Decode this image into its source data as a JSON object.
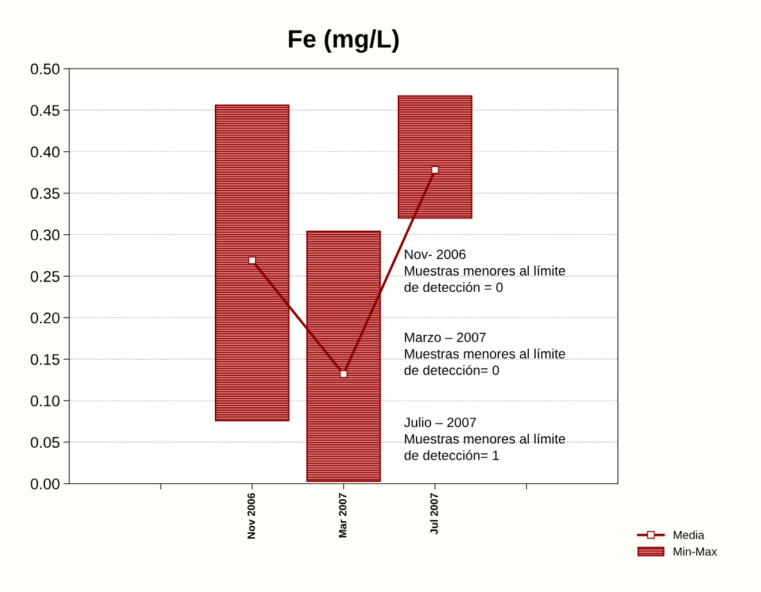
{
  "chart_data": {
    "type": "bar",
    "title": "Fe (mg/L)",
    "categories": [
      null,
      "Nov 2006",
      "Mar 2007",
      "Jul 2007",
      null
    ],
    "series": [
      {
        "name": "Media",
        "type": "line",
        "color": "#8b0000",
        "marker": "square",
        "values": [
          null,
          0.269,
          0.132,
          0.378,
          null
        ]
      },
      {
        "name": "Min-Max",
        "color": "#8b0000",
        "base": [
          null,
          0.076,
          0.003,
          0.32,
          null
        ],
        "values": [
          null,
          0.38,
          0.301,
          0.147,
          null
        ]
      }
    ],
    "ylim": [
      0,
      0.5
    ],
    "yticks": [
      {
        "value": 0,
        "label": "0.00"
      },
      {
        "value": 0.05,
        "label": "0.05"
      },
      {
        "value": 0.1,
        "label": "0.10"
      },
      {
        "value": 0.15,
        "label": "0.15"
      },
      {
        "value": 0.2,
        "label": "0.20"
      },
      {
        "value": 0.25,
        "label": "0.25"
      },
      {
        "value": 0.3,
        "label": "0.30"
      },
      {
        "value": 0.35,
        "label": "0.35"
      },
      {
        "value": 0.4,
        "label": "0.40"
      },
      {
        "value": 0.45,
        "label": "0.45"
      },
      {
        "value": 0.5,
        "label": "0.50"
      }
    ],
    "grid": "y",
    "legend": "bottom right",
    "annotations": [
      "Nov- 2006\nMuestras menores al límite\nde detección = 0",
      "Marzo – 2007\nMuestras menores al límite\nde detección= 0",
      "Julio – 2007\nMuestras menores al límite\nde detección= 1"
    ]
  }
}
